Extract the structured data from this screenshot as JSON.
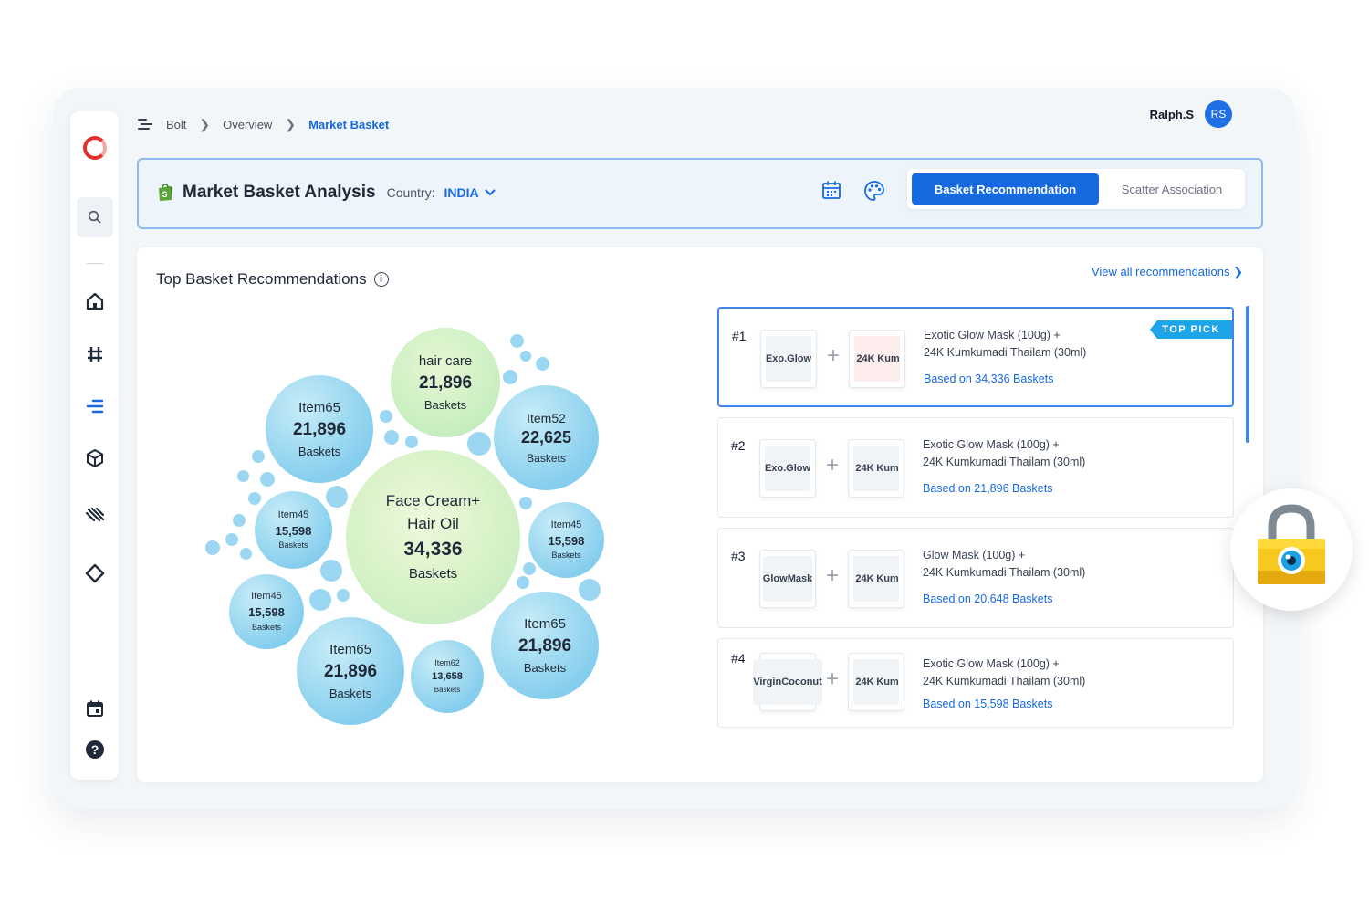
{
  "breadcrumb": {
    "items": [
      "Bolt",
      "Overview",
      "Market Basket"
    ]
  },
  "user": {
    "name": "Ralph.S",
    "initials": "RS"
  },
  "header": {
    "title": "Market Basket Analysis",
    "country_label": "Country:",
    "country_value": "INDIA",
    "tabs": {
      "active": "Basket Recommendation",
      "inactive": "Scatter Association"
    }
  },
  "section": {
    "title": "Top Basket Recommendations",
    "view_all": "View all recommendations"
  },
  "bubbles": [
    {
      "name": "Face Cream+ Hair Oil",
      "line1": "Face Cream+",
      "line2": "Hair Oil",
      "value": "34,336",
      "unit": "Baskets"
    },
    {
      "name": "hair care",
      "value": "21,896",
      "unit": "Baskets"
    },
    {
      "name": "Item65",
      "value": "21,896",
      "unit": "Baskets"
    },
    {
      "name": "Item52",
      "value": "22,625",
      "unit": "Baskets"
    },
    {
      "name": "Item45",
      "value": "15,598",
      "unit": "Baskets"
    },
    {
      "name": "Item45",
      "value": "15,598",
      "unit": "Baskets"
    },
    {
      "name": "Item45",
      "value": "15,598",
      "unit": "Baskets"
    },
    {
      "name": "Item65",
      "value": "21,896",
      "unit": "Baskets"
    },
    {
      "name": "Item62",
      "value": "13,658",
      "unit": "Baskets"
    },
    {
      "name": "Item65",
      "value": "21,896",
      "unit": "Baskets"
    }
  ],
  "recommendations": [
    {
      "rank": "#1",
      "p1": [
        "Exo.",
        "Glow"
      ],
      "p2": [
        "24K",
        "Kum"
      ],
      "line1": "Exotic Glow Mask (100g) +",
      "line2": "24K Kumkumadi Thailam (30ml)",
      "based": "Based on 34,336 Baskets",
      "badge": "TOP PICK"
    },
    {
      "rank": "#2",
      "p1": [
        "Exo.",
        "Glow"
      ],
      "p2": [
        "24K",
        "Kum"
      ],
      "line1": "Exotic Glow Mask (100g) +",
      "line2": "24K Kumkumadi Thailam (30ml)",
      "based": "Based on 21,896 Baskets"
    },
    {
      "rank": "#3",
      "p1": [
        "Glow",
        "Mask"
      ],
      "p2": [
        "24K",
        "Kum"
      ],
      "line1": "Glow Mask (100g) +",
      "line2": "24K Kumkumadi Thailam (30ml)",
      "based": "Based on 20,648 Baskets"
    },
    {
      "rank": "#4",
      "p1": [
        "Virgin",
        "Coconut"
      ],
      "p2": [
        "24K",
        "Kum"
      ],
      "line1": "Exotic Glow Mask (100g) +",
      "line2": "24K Kumkumadi Thailam (30ml)",
      "based": "Based on 15,598 Baskets"
    }
  ],
  "colors": {
    "accent": "#1769e0",
    "bubble_blue": "#88cfee",
    "bubble_green": "#d3f1c4",
    "brand_red": "#e0312c"
  },
  "icons": [
    "menu-icon",
    "search-icon",
    "home-icon",
    "hash-icon",
    "filter-icon",
    "cube-icon",
    "stripes-icon",
    "diamond-icon",
    "calendar-icon",
    "help-icon",
    "palette-icon",
    "lock-icon"
  ]
}
